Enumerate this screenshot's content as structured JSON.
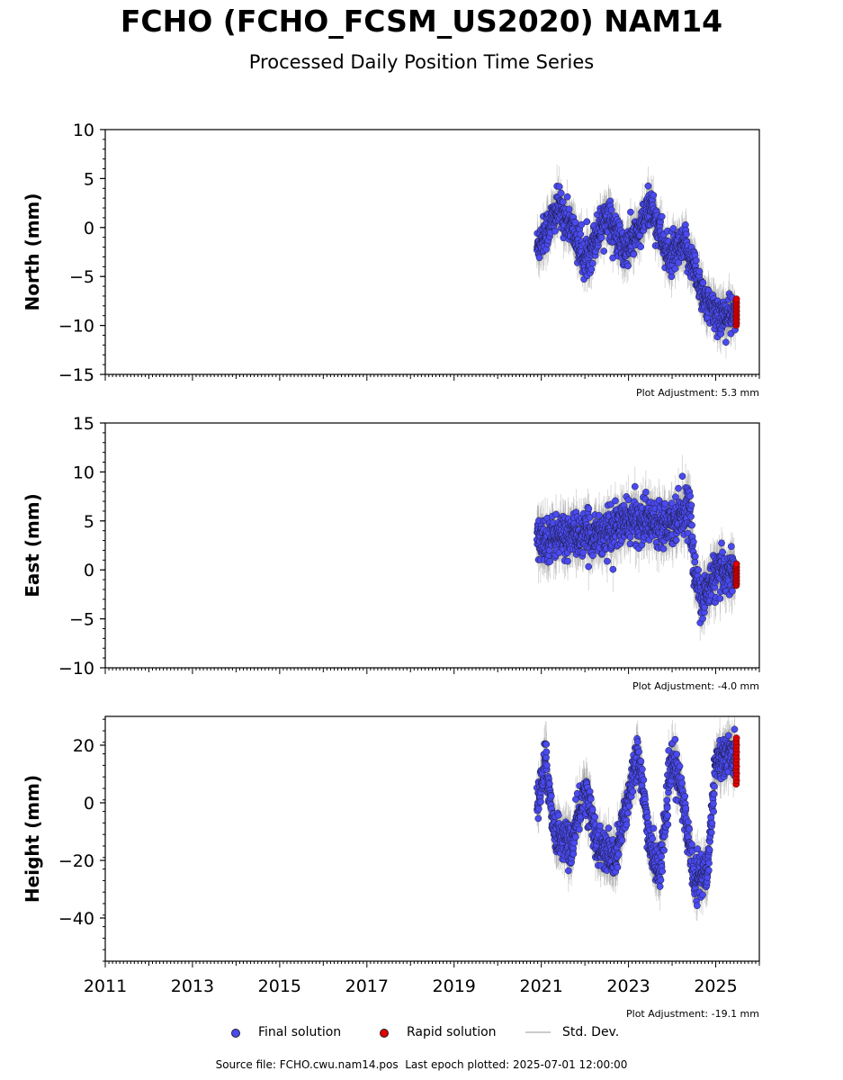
{
  "title": "FCHO (FCHO_FCSM_US2020) NAM14",
  "subtitle": "Processed Daily Position Time Series",
  "footer": {
    "source_file": "Source file: FCHO.cwu.nam14.pos",
    "last_epoch": "Last epoch plotted: 2025-07-01 12:00:00"
  },
  "legend": {
    "final": "Final solution",
    "rapid": "Rapid solution",
    "stddev": "Std. Dev."
  },
  "colors": {
    "final": "#4a4af0",
    "rapid": "#e00000",
    "stddev": "#c8c8c8"
  },
  "chart_data": [
    {
      "type": "scatter",
      "ylabel": "North (mm)",
      "ylim": [
        -15,
        10
      ],
      "yticks": [
        -15,
        -10,
        -5,
        0,
        5,
        10
      ],
      "xlim": [
        2011,
        2026
      ],
      "adjustment": "Plot Adjustment: 5.3 mm",
      "final_trend": [
        [
          2020.9,
          -2
        ],
        [
          2021.4,
          2
        ],
        [
          2021.7,
          0
        ],
        [
          2022.0,
          -3.5
        ],
        [
          2022.5,
          1.5
        ],
        [
          2022.9,
          -2.5
        ],
        [
          2023.3,
          0
        ],
        [
          2023.5,
          2.5
        ],
        [
          2023.9,
          -3
        ],
        [
          2024.3,
          -2
        ],
        [
          2024.5,
          -4
        ],
        [
          2024.8,
          -8
        ],
        [
          2025.1,
          -9
        ],
        [
          2025.45,
          -9
        ]
      ],
      "final_noise": 1.6,
      "rapid": {
        "range": [
          -10,
          -7.3
        ]
      }
    },
    {
      "type": "scatter",
      "ylabel": "East (mm)",
      "ylim": [
        -10,
        15
      ],
      "yticks": [
        -10,
        -5,
        0,
        5,
        10,
        15
      ],
      "xlim": [
        2011,
        2026
      ],
      "adjustment": "Plot Adjustment: -4.0 mm",
      "final_trend": [
        [
          2020.9,
          3
        ],
        [
          2021.5,
          3.5
        ],
        [
          2022.0,
          3.5
        ],
        [
          2022.6,
          4
        ],
        [
          2023.0,
          5
        ],
        [
          2023.5,
          5
        ],
        [
          2024.0,
          5
        ],
        [
          2024.4,
          6.5
        ],
        [
          2024.5,
          0
        ],
        [
          2024.7,
          -3
        ],
        [
          2025.0,
          -0.5
        ],
        [
          2025.45,
          0
        ]
      ],
      "final_noise": 1.8,
      "rapid": {
        "range": [
          -1.6,
          0.6
        ]
      }
    },
    {
      "type": "scatter",
      "ylabel": "Height (mm)",
      "ylim": [
        -55,
        30
      ],
      "yticks": [
        -40,
        -20,
        0,
        20
      ],
      "xlim": [
        2011,
        2026
      ],
      "xticks": [
        2011,
        2013,
        2015,
        2017,
        2019,
        2021,
        2023,
        2025
      ],
      "adjustment": "Plot Adjustment: -19.1 mm",
      "final_trend": [
        [
          2020.9,
          -2
        ],
        [
          2021.1,
          15
        ],
        [
          2021.3,
          -10
        ],
        [
          2021.7,
          -15
        ],
        [
          2022.0,
          5
        ],
        [
          2022.3,
          -15
        ],
        [
          2022.7,
          -20
        ],
        [
          2022.9,
          -5
        ],
        [
          2023.2,
          18
        ],
        [
          2023.5,
          -15
        ],
        [
          2023.7,
          -25
        ],
        [
          2024.0,
          15
        ],
        [
          2024.2,
          5
        ],
        [
          2024.5,
          -25
        ],
        [
          2024.8,
          -25
        ],
        [
          2025.0,
          15
        ],
        [
          2025.45,
          17
        ]
      ],
      "final_noise": 6,
      "rapid": {
        "range": [
          6.5,
          22.5
        ]
      }
    }
  ]
}
